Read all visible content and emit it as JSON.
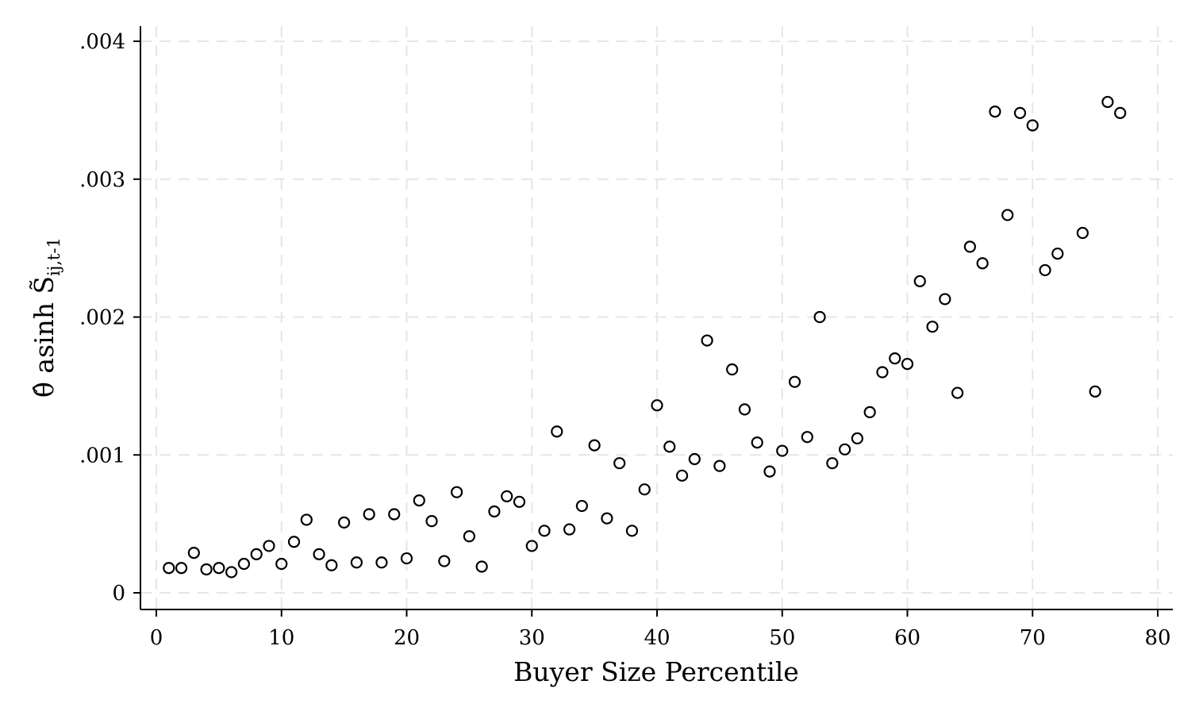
{
  "chart_data": {
    "type": "scatter",
    "xlabel": "Buyer Size Percentile",
    "ylabel": "θ̂ asinh S̃",
    "ylabel_sub": "ij,t-1",
    "xlim": [
      0,
      80
    ],
    "ylim": [
      0,
      0.004
    ],
    "x_ticks": [
      0,
      10,
      20,
      30,
      40,
      50,
      60,
      70,
      80
    ],
    "x_tick_labels": [
      "0",
      "10",
      "20",
      "30",
      "40",
      "50",
      "60",
      "70",
      "80"
    ],
    "y_ticks": [
      0,
      0.001,
      0.002,
      0.003,
      0.004
    ],
    "y_tick_labels": [
      "0",
      ".001",
      ".002",
      ".003",
      ".004"
    ],
    "grid": true,
    "marker": "hollow-circle",
    "points": [
      [
        1,
        0.00018
      ],
      [
        2,
        0.00018
      ],
      [
        3,
        0.00029
      ],
      [
        4,
        0.00017
      ],
      [
        5,
        0.00018
      ],
      [
        6,
        0.00015
      ],
      [
        7,
        0.00021
      ],
      [
        8,
        0.00028
      ],
      [
        9,
        0.00034
      ],
      [
        10,
        0.00021
      ],
      [
        11,
        0.00037
      ],
      [
        12,
        0.00053
      ],
      [
        13,
        0.00028
      ],
      [
        14,
        0.0002
      ],
      [
        15,
        0.00051
      ],
      [
        16,
        0.00022
      ],
      [
        17,
        0.00057
      ],
      [
        18,
        0.00022
      ],
      [
        19,
        0.00057
      ],
      [
        20,
        0.00025
      ],
      [
        21,
        0.00067
      ],
      [
        22,
        0.00052
      ],
      [
        23,
        0.00023
      ],
      [
        24,
        0.00073
      ],
      [
        25,
        0.00041
      ],
      [
        26,
        0.00019
      ],
      [
        27,
        0.00059
      ],
      [
        28,
        0.0007
      ],
      [
        29,
        0.00066
      ],
      [
        30,
        0.00034
      ],
      [
        31,
        0.00045
      ],
      [
        32,
        0.00117
      ],
      [
        33,
        0.00046
      ],
      [
        34,
        0.00063
      ],
      [
        35,
        0.00107
      ],
      [
        36,
        0.00054
      ],
      [
        37,
        0.00094
      ],
      [
        38,
        0.00045
      ],
      [
        39,
        0.00075
      ],
      [
        40,
        0.00136
      ],
      [
        41,
        0.00106
      ],
      [
        42,
        0.00085
      ],
      [
        43,
        0.00097
      ],
      [
        44,
        0.00183
      ],
      [
        45,
        0.00092
      ],
      [
        46,
        0.00162
      ],
      [
        47,
        0.00133
      ],
      [
        48,
        0.00109
      ],
      [
        49,
        0.00088
      ],
      [
        50,
        0.00103
      ],
      [
        51,
        0.00153
      ],
      [
        52,
        0.00113
      ],
      [
        53,
        0.002
      ],
      [
        54,
        0.00094
      ],
      [
        55,
        0.00104
      ],
      [
        56,
        0.00112
      ],
      [
        57,
        0.00131
      ],
      [
        58,
        0.0016
      ],
      [
        59,
        0.0017
      ],
      [
        60,
        0.00166
      ],
      [
        61,
        0.00226
      ],
      [
        62,
        0.00193
      ],
      [
        63,
        0.00213
      ],
      [
        64,
        0.00145
      ],
      [
        65,
        0.00251
      ],
      [
        66,
        0.00239
      ],
      [
        67,
        0.00349
      ],
      [
        68,
        0.00274
      ],
      [
        69,
        0.00348
      ],
      [
        70,
        0.00339
      ],
      [
        71,
        0.00234
      ],
      [
        72,
        0.00246
      ],
      [
        74,
        0.00261
      ],
      [
        75,
        0.00146
      ],
      [
        76,
        0.00356
      ],
      [
        77,
        0.00348
      ]
    ]
  }
}
